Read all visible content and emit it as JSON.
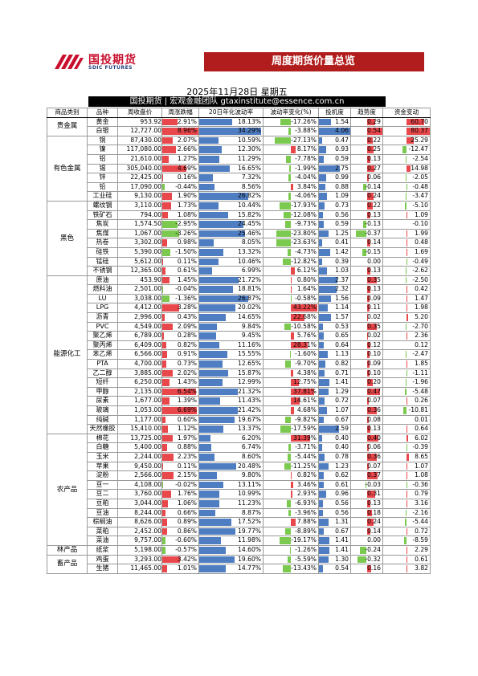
{
  "brand": {
    "cn": "国投期货",
    "en": "SDIC FUTURES"
  },
  "banner": "周度期货价量总览",
  "date": "2025年11月28日 星期五",
  "subtitle": "国投期货 | 宏观金融团队 gtaxinstitute@essence.com.cn",
  "headers": [
    "商品类别",
    "品种",
    "周收盘价",
    "周涨跌幅",
    "20日年化波动率",
    "波动率变化(%)",
    "投机度",
    "趋势度",
    "资金变动"
  ],
  "colors": {
    "red": "#E8474B",
    "blue": "#4F7DC1",
    "green": "#7BC94F",
    "banner": "#B11D1D"
  },
  "groups": [
    {
      "category": "贵金属",
      "rows": [
        [
          "黄金",
          "953.92",
          "2.91%",
          "18.13%",
          "-17.26%",
          "1.54",
          "0.29",
          "60.70"
        ],
        [
          "白银",
          "12,727.00",
          "8.96%",
          "34.29%",
          "-3.88%",
          "4.06",
          "0.54",
          "80.37"
        ]
      ]
    },
    {
      "category": "有色金属",
      "rows": [
        [
          "铜",
          "87,430.00",
          "2.07%",
          "10.59%",
          "-27.13%",
          "0.47",
          "0.22",
          "25.29"
        ],
        [
          "镍",
          "117,080.00",
          "2.66%",
          "12.30%",
          "8.17%",
          "0.93",
          "0.25",
          "-12.47"
        ],
        [
          "铝",
          "21,610.00",
          "1.27%",
          "11.29%",
          "-7.78%",
          "0.59",
          "0.13",
          "-2.54"
        ],
        [
          "锡",
          "305,040.00",
          "4.69%",
          "16.65%",
          "-1.99%",
          "2.75",
          "0.27",
          "14.98"
        ],
        [
          "锌",
          "22,425.00",
          "0.16%",
          "7.32%",
          "-4.04%",
          "0.99",
          "0.06",
          "-2.05"
        ],
        [
          "铅",
          "17,090.00",
          "-0.44%",
          "8.56%",
          "3.84%",
          "0.88",
          "-0.14",
          "-0.48"
        ],
        [
          "工业硅",
          "9,130.00",
          "1.90%",
          "26.82%",
          "-4.06%",
          "1.09",
          "0.24",
          "-3.47"
        ]
      ]
    },
    {
      "category": "黑色",
      "rows": [
        [
          "螺纹钢",
          "3,110.00",
          "1.73%",
          "10.44%",
          "-17.93%",
          "0.73",
          "0.22",
          "-5.10"
        ],
        [
          "铁矿石",
          "794.00",
          "1.08%",
          "15.82%",
          "-12.08%",
          "0.56",
          "0.13",
          "1.09"
        ],
        [
          "焦炭",
          "1,574.50",
          "-2.95%",
          "24.45%",
          "-9.73%",
          "0.59",
          "-0.13",
          "-0.10"
        ],
        [
          "焦煤",
          "1,067.00",
          "-3.26%",
          "25.46%",
          "-23.80%",
          "1.25",
          "-0.37",
          "1.99"
        ],
        [
          "热卷",
          "3,302.00",
          "0.98%",
          "8.05%",
          "-23.63%",
          "0.41",
          "0.14",
          "0.48"
        ],
        [
          "硅铁",
          "5,390.00",
          "-1.50%",
          "13.32%",
          "-4.73%",
          "1.42",
          "-0.15",
          "1.69"
        ],
        [
          "锰硅",
          "5,612.00",
          "0.11%",
          "10.46%",
          "-12.82%",
          "0.39",
          "0.00",
          "-0.49"
        ],
        [
          "不锈钢",
          "12,365.00",
          "0.61%",
          "6.99%",
          "6.12%",
          "1.03",
          "0.13",
          "-2.62"
        ]
      ]
    },
    {
      "category": "能源化工",
      "rows": [
        [
          "原油",
          "453.90",
          "1.45%",
          "21.72%",
          "0.80%",
          "2.37",
          "0.35",
          "-2.50"
        ],
        [
          "燃料油",
          "2,501.00",
          "-0.04%",
          "18.81%",
          "1.64%",
          "2.32",
          "0.13",
          "0.42"
        ],
        [
          "LU",
          "3,038.00",
          "-1.36%",
          "26.87%",
          "-0.58%",
          "1.56",
          "0.09",
          "1.47"
        ],
        [
          "LPG",
          "4,412.00",
          "3.28%",
          "20.02%",
          "43.22%",
          "1.14",
          "0.11",
          "1.98"
        ],
        [
          "沥青",
          "2,996.00",
          "0.43%",
          "14.65%",
          "22.68%",
          "1.57",
          "0.02",
          "5.20"
        ],
        [
          "PVC",
          "4,549.00",
          "2.09%",
          "9.84%",
          "-10.58%",
          "0.53",
          "0.35",
          "-2.70"
        ],
        [
          "聚乙烯",
          "6,789.00",
          "0.28%",
          "9.45%",
          "5.76%",
          "0.65",
          "0.02",
          "2.36"
        ],
        [
          "聚丙烯",
          "6,409.00",
          "0.82%",
          "11.16%",
          "28.31%",
          "0.64",
          "0.12",
          "0.12"
        ],
        [
          "苯乙烯",
          "6,566.00",
          "0.91%",
          "15.55%",
          "-1.60%",
          "1.13",
          "0.10",
          "-2.47"
        ],
        [
          "PTA",
          "4,700.00",
          "0.73%",
          "12.65%",
          "-9.70%",
          "0.82",
          "0.09",
          "1.85"
        ],
        [
          "乙二醇",
          "3,885.00",
          "2.02%",
          "15.87%",
          "4.38%",
          "0.71",
          "0.10",
          "-1.11"
        ],
        [
          "短纤",
          "6,250.00",
          "1.43%",
          "12.99%",
          "12.75%",
          "1.41",
          "0.20",
          "-1.96"
        ],
        [
          "甲醇",
          "2,135.00",
          "6.54%",
          "21.32%",
          "37.81%",
          "1.29",
          "0.47",
          "-5.48"
        ],
        [
          "尿素",
          "1,677.00",
          "1.39%",
          "11.43%",
          "14.61%",
          "0.72",
          "0.07",
          "0.26"
        ],
        [
          "玻璃",
          "1,053.00",
          "6.69%",
          "21.42%",
          "4.68%",
          "1.07",
          "0.36",
          "-10.81"
        ],
        [
          "纯碱",
          "1,177.00",
          "0.60%",
          "19.67%",
          "-9.82%",
          "0.67",
          "0.08",
          "0.01"
        ],
        [
          "天然橡胶",
          "15,410.00",
          "1.12%",
          "13.37%",
          "-17.59%",
          "2.59",
          "0.13",
          "0.64"
        ]
      ]
    },
    {
      "category": "农产品",
      "rows": [
        [
          "棉花",
          "13,725.00",
          "1.97%",
          "6.20%",
          "31.39%",
          "0.40",
          "0.40",
          "6.02"
        ],
        [
          "白糖",
          "5,400.00",
          "0.88%",
          "6.74%",
          "-3.71%",
          "0.40",
          "0.06",
          "-0.39"
        ],
        [
          "玉米",
          "2,244.00",
          "2.23%",
          "8.60%",
          "-5.44%",
          "0.78",
          "0.36",
          "8.65"
        ],
        [
          "苹果",
          "9,450.00",
          "0.11%",
          "20.48%",
          "-11.25%",
          "1.23",
          "0.07",
          "1.07"
        ],
        [
          "淀粉",
          "2,566.00",
          "2.15%",
          "9.80%",
          "0.82%",
          "0.62",
          "0.37",
          "1.08"
        ],
        [
          "豆一",
          "4,108.00",
          "-0.02%",
          "13.11%",
          "3.46%",
          "0.61",
          "-0.03",
          "-0.36"
        ],
        [
          "豆二",
          "3,760.00",
          "1.76%",
          "10.99%",
          "2.93%",
          "0.96",
          "0.31",
          "0.79"
        ],
        [
          "豆粕",
          "3,044.00",
          "1.06%",
          "11.23%",
          "-6.93%",
          "0.56",
          "0.13",
          "3.16"
        ],
        [
          "豆油",
          "8,244.00",
          "0.66%",
          "8.87%",
          "-3.96%",
          "0.56",
          "0.18",
          "-2.16"
        ],
        [
          "棕榈油",
          "8,626.00",
          "0.89%",
          "17.52%",
          "7.88%",
          "1.31",
          "0.24",
          "-5.44"
        ],
        [
          "菜粕",
          "2,452.00",
          "0.86%",
          "19.77%",
          "-8.89%",
          "0.67",
          "0.14",
          "0.72"
        ],
        [
          "菜油",
          "9,757.00",
          "-0.60%",
          "11.98%",
          "-19.17%",
          "1.41",
          "0.00",
          "-8.59"
        ]
      ]
    },
    {
      "category": "林产品",
      "rows": [
        [
          "纸浆",
          "5,198.00",
          "-0.57%",
          "14.60%",
          "-1.26%",
          "1.41",
          "-0.24",
          "2.29"
        ]
      ]
    },
    {
      "category": "畜产品",
      "rows": [
        [
          "鸡蛋",
          "3,293.00",
          "3.42%",
          "19.60%",
          "-5.59%",
          "1.30",
          "-0.32",
          "0.61"
        ],
        [
          "生猪",
          "11,465.00",
          "1.01%",
          "14.77%",
          "-13.43%",
          "0.54",
          "0.16",
          "3.82"
        ]
      ]
    }
  ]
}
